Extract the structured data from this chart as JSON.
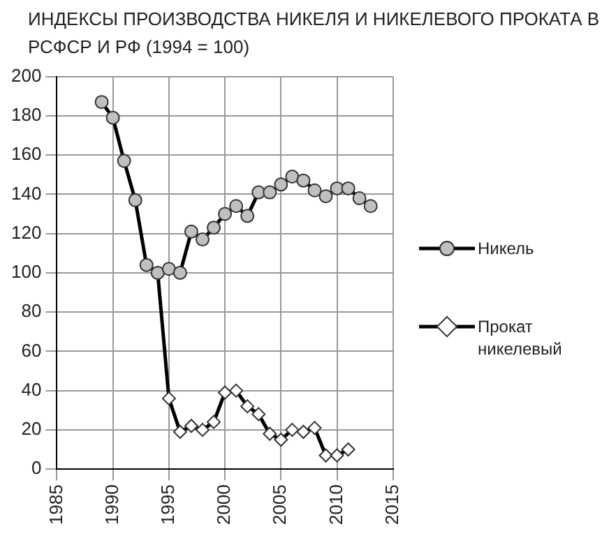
{
  "chart_data": {
    "type": "line",
    "title": "ИНДЕКСЫ ПРОИЗВОДСТВА НИКЕЛЯ И НИКЕЛЕВОГО ПРОКАТА В  РСФСР  И  РФ (1994 = 100)",
    "series": [
      {
        "name": "Никель",
        "color": "#c0c0c0",
        "marker": "circle",
        "x": [
          1989,
          1990,
          1991,
          1992,
          1993,
          1994,
          1995,
          1996,
          1997,
          1998,
          1999,
          2000,
          2001,
          2002,
          2003,
          2004,
          2005,
          2006,
          2007,
          2008,
          2009,
          2010,
          2011,
          2012,
          2013
        ],
        "values": [
          187,
          179,
          157,
          137,
          104,
          100,
          102,
          100,
          121,
          117,
          123,
          130,
          134,
          129,
          141,
          141,
          145,
          149,
          147,
          142,
          139,
          143,
          143,
          138,
          134
        ]
      },
      {
        "name": "Прокат никелевый",
        "color": "#ffffff",
        "marker": "diamond",
        "x": [
          1994,
          1995,
          1996,
          1997,
          1998,
          1999,
          2000,
          2001,
          2002,
          2003,
          2004,
          2005,
          2006,
          2007,
          2008,
          2009,
          2010,
          2011
        ],
        "values": [
          100,
          36,
          19,
          22,
          20,
          24,
          39,
          40,
          32,
          28,
          18,
          15,
          20,
          19,
          21,
          7,
          7,
          10
        ]
      }
    ],
    "xlim": [
      1985,
      2015
    ],
    "xticks": [
      1985,
      1990,
      1995,
      2000,
      2005,
      2010,
      2015
    ],
    "ylim": [
      0,
      200
    ],
    "yticks": [
      0,
      20,
      40,
      60,
      80,
      100,
      120,
      140,
      160,
      180,
      200
    ],
    "grid": true,
    "legend": "right",
    "line_style": "solid"
  }
}
